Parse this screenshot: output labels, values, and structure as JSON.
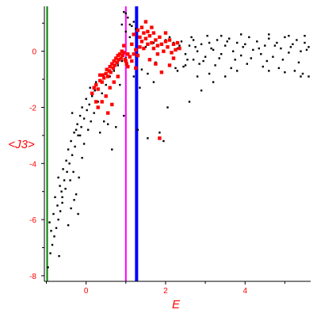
{
  "chart_data": {
    "type": "scatter",
    "xlabel": "E",
    "ylabel": "<J3>",
    "xlim": [
      -1.05,
      5.65
    ],
    "ylim": [
      -8.2,
      1.6
    ],
    "x_ticks": [
      0,
      2,
      4
    ],
    "x_tick_labels": [
      "0",
      "2",
      "4"
    ],
    "y_ticks": [
      0,
      -2,
      -4,
      -6,
      -8
    ],
    "y_tick_labels": [
      "0",
      "-2",
      "-4",
      "-6",
      "-8"
    ],
    "grid": false,
    "vertical_lines": [
      {
        "x": -0.98,
        "color": "#008000",
        "width": 2
      },
      {
        "x": 1.0,
        "color": "#ff00ff",
        "width": 2
      },
      {
        "x": 1.27,
        "color": "#0000ff",
        "width": 4
      }
    ],
    "series": [
      {
        "color": "#000000",
        "marker_size": 1.2,
        "points": [
          [
            -0.96,
            -7.7
          ],
          [
            -0.9,
            -7.2
          ],
          [
            -0.85,
            -6.9
          ],
          [
            -0.8,
            -6.6
          ],
          [
            -0.75,
            -6.3
          ],
          [
            -0.7,
            -6.0
          ],
          [
            -0.65,
            -5.7
          ],
          [
            -0.6,
            -5.4
          ],
          [
            -0.92,
            -6.1
          ],
          [
            -0.82,
            -5.8
          ],
          [
            -0.72,
            -5.5
          ],
          [
            -0.62,
            -5.0
          ],
          [
            -0.55,
            -4.6
          ],
          [
            -0.48,
            -4.3
          ],
          [
            -0.42,
            -4.0
          ],
          [
            -0.35,
            -3.7
          ],
          [
            -0.7,
            -4.5
          ],
          [
            -0.58,
            -4.2
          ],
          [
            -0.5,
            -3.9
          ],
          [
            -0.45,
            -3.5
          ],
          [
            -0.38,
            -3.2
          ],
          [
            -0.3,
            -2.9
          ],
          [
            -0.22,
            -2.6
          ],
          [
            -0.15,
            -2.3
          ],
          [
            -0.6,
            -5.2
          ],
          [
            -0.52,
            -4.9
          ],
          [
            -0.4,
            -4.6
          ],
          [
            -0.32,
            -4.3
          ],
          [
            -0.25,
            -5.1
          ],
          [
            -0.18,
            -4.5
          ],
          [
            -0.1,
            -3.8
          ],
          [
            -0.05,
            -3.3
          ],
          [
            -0.28,
            -3.4
          ],
          [
            -0.2,
            -3.0
          ],
          [
            -0.12,
            -2.7
          ],
          [
            -0.05,
            -2.4
          ],
          [
            0.02,
            -2.1
          ],
          [
            0.08,
            -1.9
          ],
          [
            0.15,
            -1.6
          ],
          [
            0.22,
            -1.4
          ],
          [
            -0.45,
            -6.2
          ],
          [
            -0.38,
            -5.6
          ],
          [
            -0.3,
            -5.3
          ],
          [
            -0.2,
            -5.8
          ],
          [
            -0.68,
            -7.3
          ],
          [
            -0.88,
            -6.4
          ],
          [
            -0.78,
            -5.2
          ],
          [
            -0.66,
            -4.8
          ],
          [
            0.05,
            -2.8
          ],
          [
            0.12,
            -2.5
          ],
          [
            0.2,
            -2.2
          ],
          [
            0.3,
            -1.8
          ],
          [
            0.4,
            -1.5
          ],
          [
            0.5,
            -1.2
          ],
          [
            0.6,
            -0.9
          ],
          [
            0.7,
            -0.7
          ],
          [
            0.8,
            -0.5
          ],
          [
            0.9,
            -0.35
          ],
          [
            1.0,
            -0.25
          ],
          [
            1.1,
            -0.2
          ],
          [
            0.35,
            -2.9
          ],
          [
            0.55,
            -2.6
          ],
          [
            0.75,
            -2.7
          ],
          [
            0.95,
            -2.3
          ],
          [
            0.65,
            -3.5
          ],
          [
            1.3,
            -2.8
          ],
          [
            1.55,
            -3.1
          ],
          [
            1.85,
            -2.9
          ],
          [
            2.05,
            -2.0
          ],
          [
            2.6,
            -1.8
          ],
          [
            2.9,
            -1.4
          ],
          [
            3.2,
            -1.1
          ],
          [
            3.5,
            -0.9
          ],
          [
            3.8,
            -0.7
          ],
          [
            1.05,
            1.2
          ],
          [
            1.1,
            0.95
          ],
          [
            1.2,
            1.05
          ],
          [
            1.25,
            0.8
          ],
          [
            1.35,
            -1.3
          ],
          [
            1.55,
            -0.8
          ],
          [
            1.75,
            -0.4
          ],
          [
            2.25,
            -0.6
          ],
          [
            1.95,
            -3.2
          ],
          [
            2.3,
            -0.7
          ],
          [
            2.5,
            -0.5
          ],
          [
            2.8,
            -0.9
          ],
          [
            3.1,
            -0.8
          ],
          [
            2.7,
            -0.3
          ],
          [
            2.2,
            0.3
          ],
          [
            2.3,
            0.1
          ],
          [
            2.4,
            0.35
          ],
          [
            2.5,
            -0.1
          ],
          [
            2.6,
            0.2
          ],
          [
            2.7,
            0.4
          ],
          [
            2.8,
            0.0
          ],
          [
            2.9,
            0.25
          ],
          [
            3.0,
            -0.2
          ],
          [
            3.1,
            0.3
          ],
          [
            3.2,
            0.05
          ],
          [
            3.3,
            0.4
          ],
          [
            3.4,
            -0.1
          ],
          [
            3.5,
            0.2
          ],
          [
            3.6,
            0.45
          ],
          [
            3.7,
            0.0
          ],
          [
            3.8,
            0.3
          ],
          [
            3.9,
            -0.15
          ],
          [
            4.0,
            0.25
          ],
          [
            4.1,
            0.5
          ],
          [
            4.2,
            0.05
          ],
          [
            4.3,
            0.35
          ],
          [
            4.4,
            -0.1
          ],
          [
            4.5,
            0.2
          ],
          [
            4.6,
            0.45
          ],
          [
            4.7,
            -0.2
          ],
          [
            4.8,
            0.3
          ],
          [
            4.9,
            0.1
          ],
          [
            5.0,
            0.5
          ],
          [
            5.1,
            -0.05
          ],
          [
            5.2,
            0.25
          ],
          [
            5.3,
            0.4
          ],
          [
            5.4,
            0.0
          ],
          [
            5.5,
            0.3
          ],
          [
            5.6,
            0.15
          ],
          [
            2.35,
            0.2
          ],
          [
            2.55,
            -0.3
          ],
          [
            2.75,
            0.15
          ],
          [
            2.95,
            -0.35
          ],
          [
            3.15,
            0.1
          ],
          [
            3.35,
            -0.25
          ],
          [
            3.55,
            0.35
          ],
          [
            3.75,
            -0.3
          ],
          [
            3.95,
            0.15
          ],
          [
            4.15,
            -0.25
          ],
          [
            4.35,
            0.1
          ],
          [
            4.55,
            -0.35
          ],
          [
            4.75,
            0.2
          ],
          [
            4.95,
            -0.3
          ],
          [
            5.15,
            0.15
          ],
          [
            5.35,
            -0.4
          ],
          [
            5.55,
            0.05
          ],
          [
            2.45,
            -0.55
          ],
          [
            2.85,
            -0.45
          ],
          [
            3.25,
            -0.5
          ],
          [
            3.65,
            -0.6
          ],
          [
            4.05,
            -0.45
          ],
          [
            4.45,
            -0.55
          ],
          [
            4.85,
            -0.6
          ],
          [
            5.25,
            -0.7
          ],
          [
            5.45,
            -0.8
          ],
          [
            5.6,
            -0.9
          ],
          [
            5.4,
            -0.9
          ],
          [
            5.0,
            -0.75
          ],
          [
            4.6,
            -0.7
          ],
          [
            3.4,
            0.55
          ],
          [
            3.9,
            0.6
          ],
          [
            4.6,
            0.6
          ],
          [
            5.1,
            0.55
          ],
          [
            5.5,
            0.55
          ],
          [
            2.65,
            0.5
          ],
          [
            3.05,
            0.55
          ],
          [
            1.0,
            0.7
          ],
          [
            1.1,
            0.5
          ],
          [
            1.15,
            0.9
          ],
          [
            0.95,
            1.4
          ],
          [
            1.0,
            1.35
          ],
          [
            0.9,
            0.95
          ],
          [
            1.5,
            0.15
          ],
          [
            1.7,
            0.3
          ],
          [
            1.8,
            -0.1
          ],
          [
            2.0,
            0.4
          ],
          [
            2.1,
            0.5
          ],
          [
            1.6,
            -0.3
          ],
          [
            0.45,
            -2.5
          ],
          [
            0.85,
            -1.2
          ],
          [
            1.2,
            -0.9
          ],
          [
            1.4,
            -0.65
          ],
          [
            1.7,
            -1.1
          ],
          [
            0.1,
            -1.3
          ],
          [
            0.25,
            -1.1
          ],
          [
            -0.1,
            -2.0
          ],
          [
            0.0,
            -1.7
          ],
          [
            -0.25,
            -2.8
          ],
          [
            -0.35,
            -2.2
          ],
          [
            -0.15,
            -3.0
          ]
        ]
      },
      {
        "color": "#ff0000",
        "marker_size": 2.2,
        "points": [
          [
            0.15,
            -1.5
          ],
          [
            0.2,
            -1.3
          ],
          [
            0.25,
            -1.2
          ],
          [
            0.3,
            -1.35
          ],
          [
            0.35,
            -1.05
          ],
          [
            0.4,
            -1.1
          ],
          [
            0.42,
            -0.85
          ],
          [
            0.45,
            -0.95
          ],
          [
            0.5,
            -0.8
          ],
          [
            0.52,
            -0.65
          ],
          [
            0.55,
            -0.9
          ],
          [
            0.58,
            -0.7
          ],
          [
            0.6,
            -0.55
          ],
          [
            0.62,
            -0.75
          ],
          [
            0.65,
            -0.45
          ],
          [
            0.68,
            -0.6
          ],
          [
            0.7,
            -0.35
          ],
          [
            0.72,
            -0.5
          ],
          [
            0.75,
            -0.25
          ],
          [
            0.78,
            -0.4
          ],
          [
            0.8,
            -0.15
          ],
          [
            0.82,
            -0.3
          ],
          [
            0.85,
            -0.1
          ],
          [
            0.88,
            -0.25
          ],
          [
            0.9,
            0.0
          ],
          [
            0.92,
            -0.15
          ],
          [
            0.95,
            -0.05
          ],
          [
            0.98,
            -0.3
          ],
          [
            1.02,
            -0.45
          ],
          [
            1.05,
            -0.55
          ],
          [
            1.1,
            -0.2
          ],
          [
            1.15,
            -0.35
          ],
          [
            1.2,
            -0.1
          ],
          [
            1.25,
            0.05
          ],
          [
            1.3,
            -0.15
          ],
          [
            1.35,
            0.15
          ],
          [
            1.4,
            0.35
          ],
          [
            1.45,
            0.1
          ],
          [
            1.5,
            0.45
          ],
          [
            1.55,
            0.25
          ],
          [
            1.6,
            0.55
          ],
          [
            1.65,
            0.3
          ],
          [
            1.7,
            0.1
          ],
          [
            1.75,
            0.4
          ],
          [
            1.8,
            0.2
          ],
          [
            1.85,
            0.5
          ],
          [
            1.9,
            0.25
          ],
          [
            1.95,
            0.0
          ],
          [
            2.0,
            0.35
          ],
          [
            2.05,
            0.15
          ],
          [
            2.1,
            0.4
          ],
          [
            2.15,
            -0.05
          ],
          [
            2.2,
            0.25
          ],
          [
            2.25,
            0.05
          ],
          [
            2.3,
            0.3
          ],
          [
            2.35,
            0.1
          ],
          [
            1.45,
            0.65
          ],
          [
            1.55,
            0.7
          ],
          [
            1.7,
            0.65
          ],
          [
            2.0,
            0.65
          ],
          [
            1.35,
            0.5
          ],
          [
            1.8,
            -0.1
          ],
          [
            2.2,
            -0.25
          ],
          [
            1.6,
            -0.3
          ],
          [
            0.5,
            -1.6
          ],
          [
            0.6,
            -1.3
          ],
          [
            0.7,
            -1.1
          ],
          [
            0.3,
            -2.0
          ],
          [
            0.4,
            -1.8
          ],
          [
            0.55,
            -2.2
          ],
          [
            0.8,
            -0.9
          ],
          [
            0.65,
            -1.9
          ],
          [
            1.0,
            -0.35
          ],
          [
            1.05,
            -0.1
          ],
          [
            0.95,
            0.2
          ],
          [
            1.15,
            0.25
          ],
          [
            1.2,
            0.6
          ],
          [
            1.3,
            0.75
          ],
          [
            1.4,
            0.85
          ],
          [
            1.5,
            1.05
          ],
          [
            1.9,
            -0.75
          ],
          [
            2.1,
            -0.5
          ],
          [
            1.75,
            -0.45
          ],
          [
            1.85,
            -3.1
          ],
          [
            1.25,
            -0.6
          ],
          [
            0.35,
            -0.85
          ],
          [
            0.25,
            -1.8
          ],
          [
            1.65,
            0.85
          ]
        ]
      }
    ]
  }
}
